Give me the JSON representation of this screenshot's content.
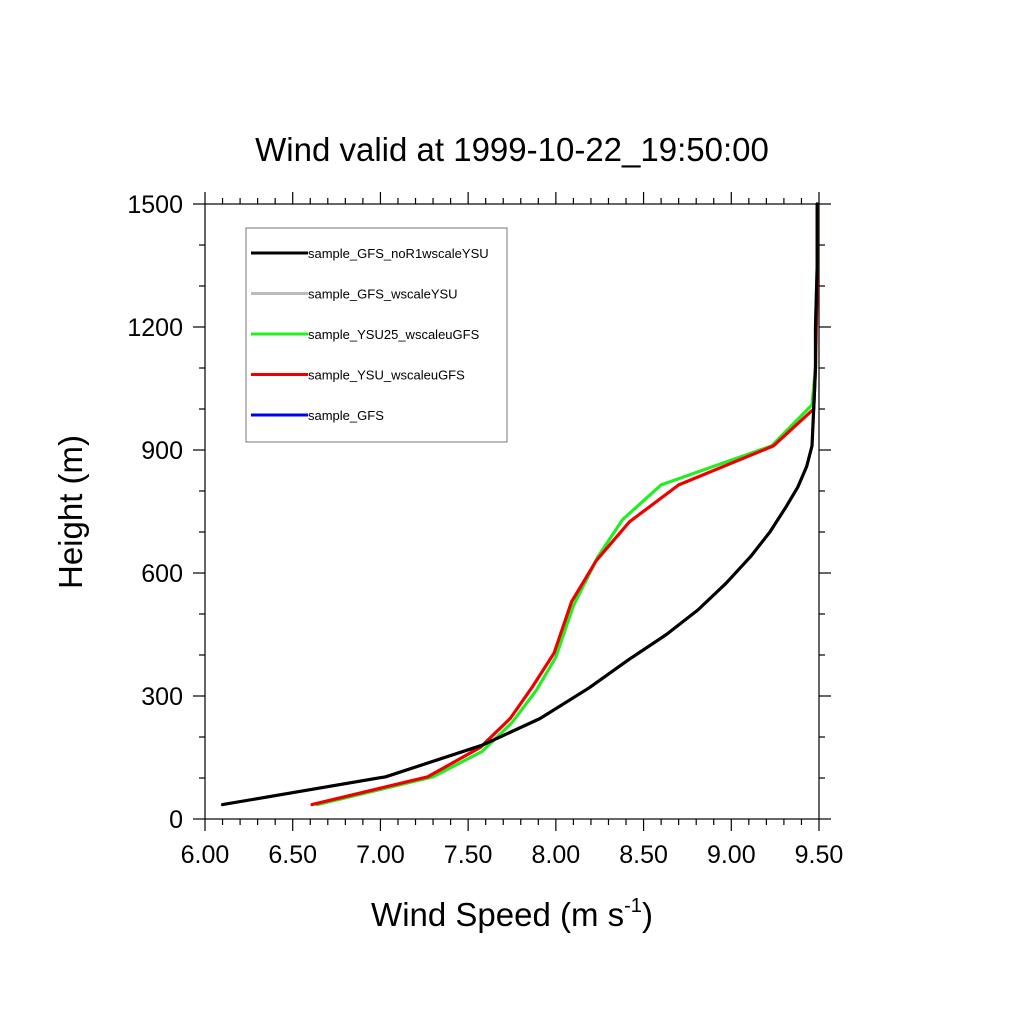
{
  "chart_data": {
    "type": "line",
    "title": "Wind valid at 1999-10-22_19:50:00",
    "xlabel": "Wind Speed (m s",
    "xlabel_superscript": "-1",
    "xlabel_suffix": ")",
    "ylabel": "Height (m)",
    "xlim": [
      6.0,
      9.5
    ],
    "ylim": [
      0,
      1500
    ],
    "xticks": [
      6.0,
      6.5,
      7.0,
      7.5,
      8.0,
      8.5,
      9.0,
      9.5
    ],
    "xtick_labels": [
      "6.00",
      "6.50",
      "7.00",
      "7.50",
      "8.00",
      "8.50",
      "9.00",
      "9.50"
    ],
    "yticks": [
      0,
      300,
      600,
      900,
      1200,
      1500
    ],
    "ytick_labels": [
      "0",
      "300",
      "600",
      "900",
      "1200",
      "1500"
    ],
    "grid": false,
    "legend_position": "top-left",
    "series": [
      {
        "name": "sample_GFS_noR1wscaleYSU",
        "color": "#000000",
        "x": [
          6.1,
          7.03,
          7.58,
          7.91,
          8.19,
          8.42,
          8.63,
          8.81,
          8.97,
          9.11,
          9.22,
          9.31,
          9.38,
          9.43,
          9.46,
          9.47,
          9.48,
          9.48,
          9.49,
          9.49
        ],
        "y": [
          35,
          103,
          180,
          245,
          320,
          390,
          450,
          510,
          575,
          640,
          700,
          760,
          810,
          860,
          910,
          1000,
          1100,
          1200,
          1350,
          1500
        ]
      },
      {
        "name": "sample_GFS_wscaleYSU",
        "color": "#bbbbbb",
        "x": [],
        "y": []
      },
      {
        "name": "sample_YSU25_wscaleuGFS",
        "color": "#22ee22",
        "x": [
          6.64,
          7.3,
          7.58,
          7.75,
          7.89,
          8.0,
          8.1,
          8.24,
          8.38,
          8.6,
          9.23,
          9.46,
          9.48,
          9.48,
          9.49,
          9.49
        ],
        "y": [
          35,
          103,
          165,
          235,
          315,
          395,
          520,
          640,
          730,
          815,
          910,
          1010,
          1100,
          1200,
          1350,
          1500
        ]
      },
      {
        "name": "sample_YSU_wscaleuGFS",
        "color": "#ee0000",
        "x": [
          6.61,
          7.27,
          7.57,
          7.74,
          7.87,
          7.99,
          8.09,
          8.23,
          8.42,
          8.7,
          9.24,
          9.47,
          9.48,
          9.49,
          9.49
        ],
        "y": [
          35,
          103,
          175,
          245,
          325,
          405,
          530,
          630,
          725,
          815,
          910,
          1000,
          1100,
          1300,
          1500
        ]
      },
      {
        "name": "sample_GFS",
        "color": "#0000ee",
        "x": [],
        "y": []
      }
    ]
  }
}
